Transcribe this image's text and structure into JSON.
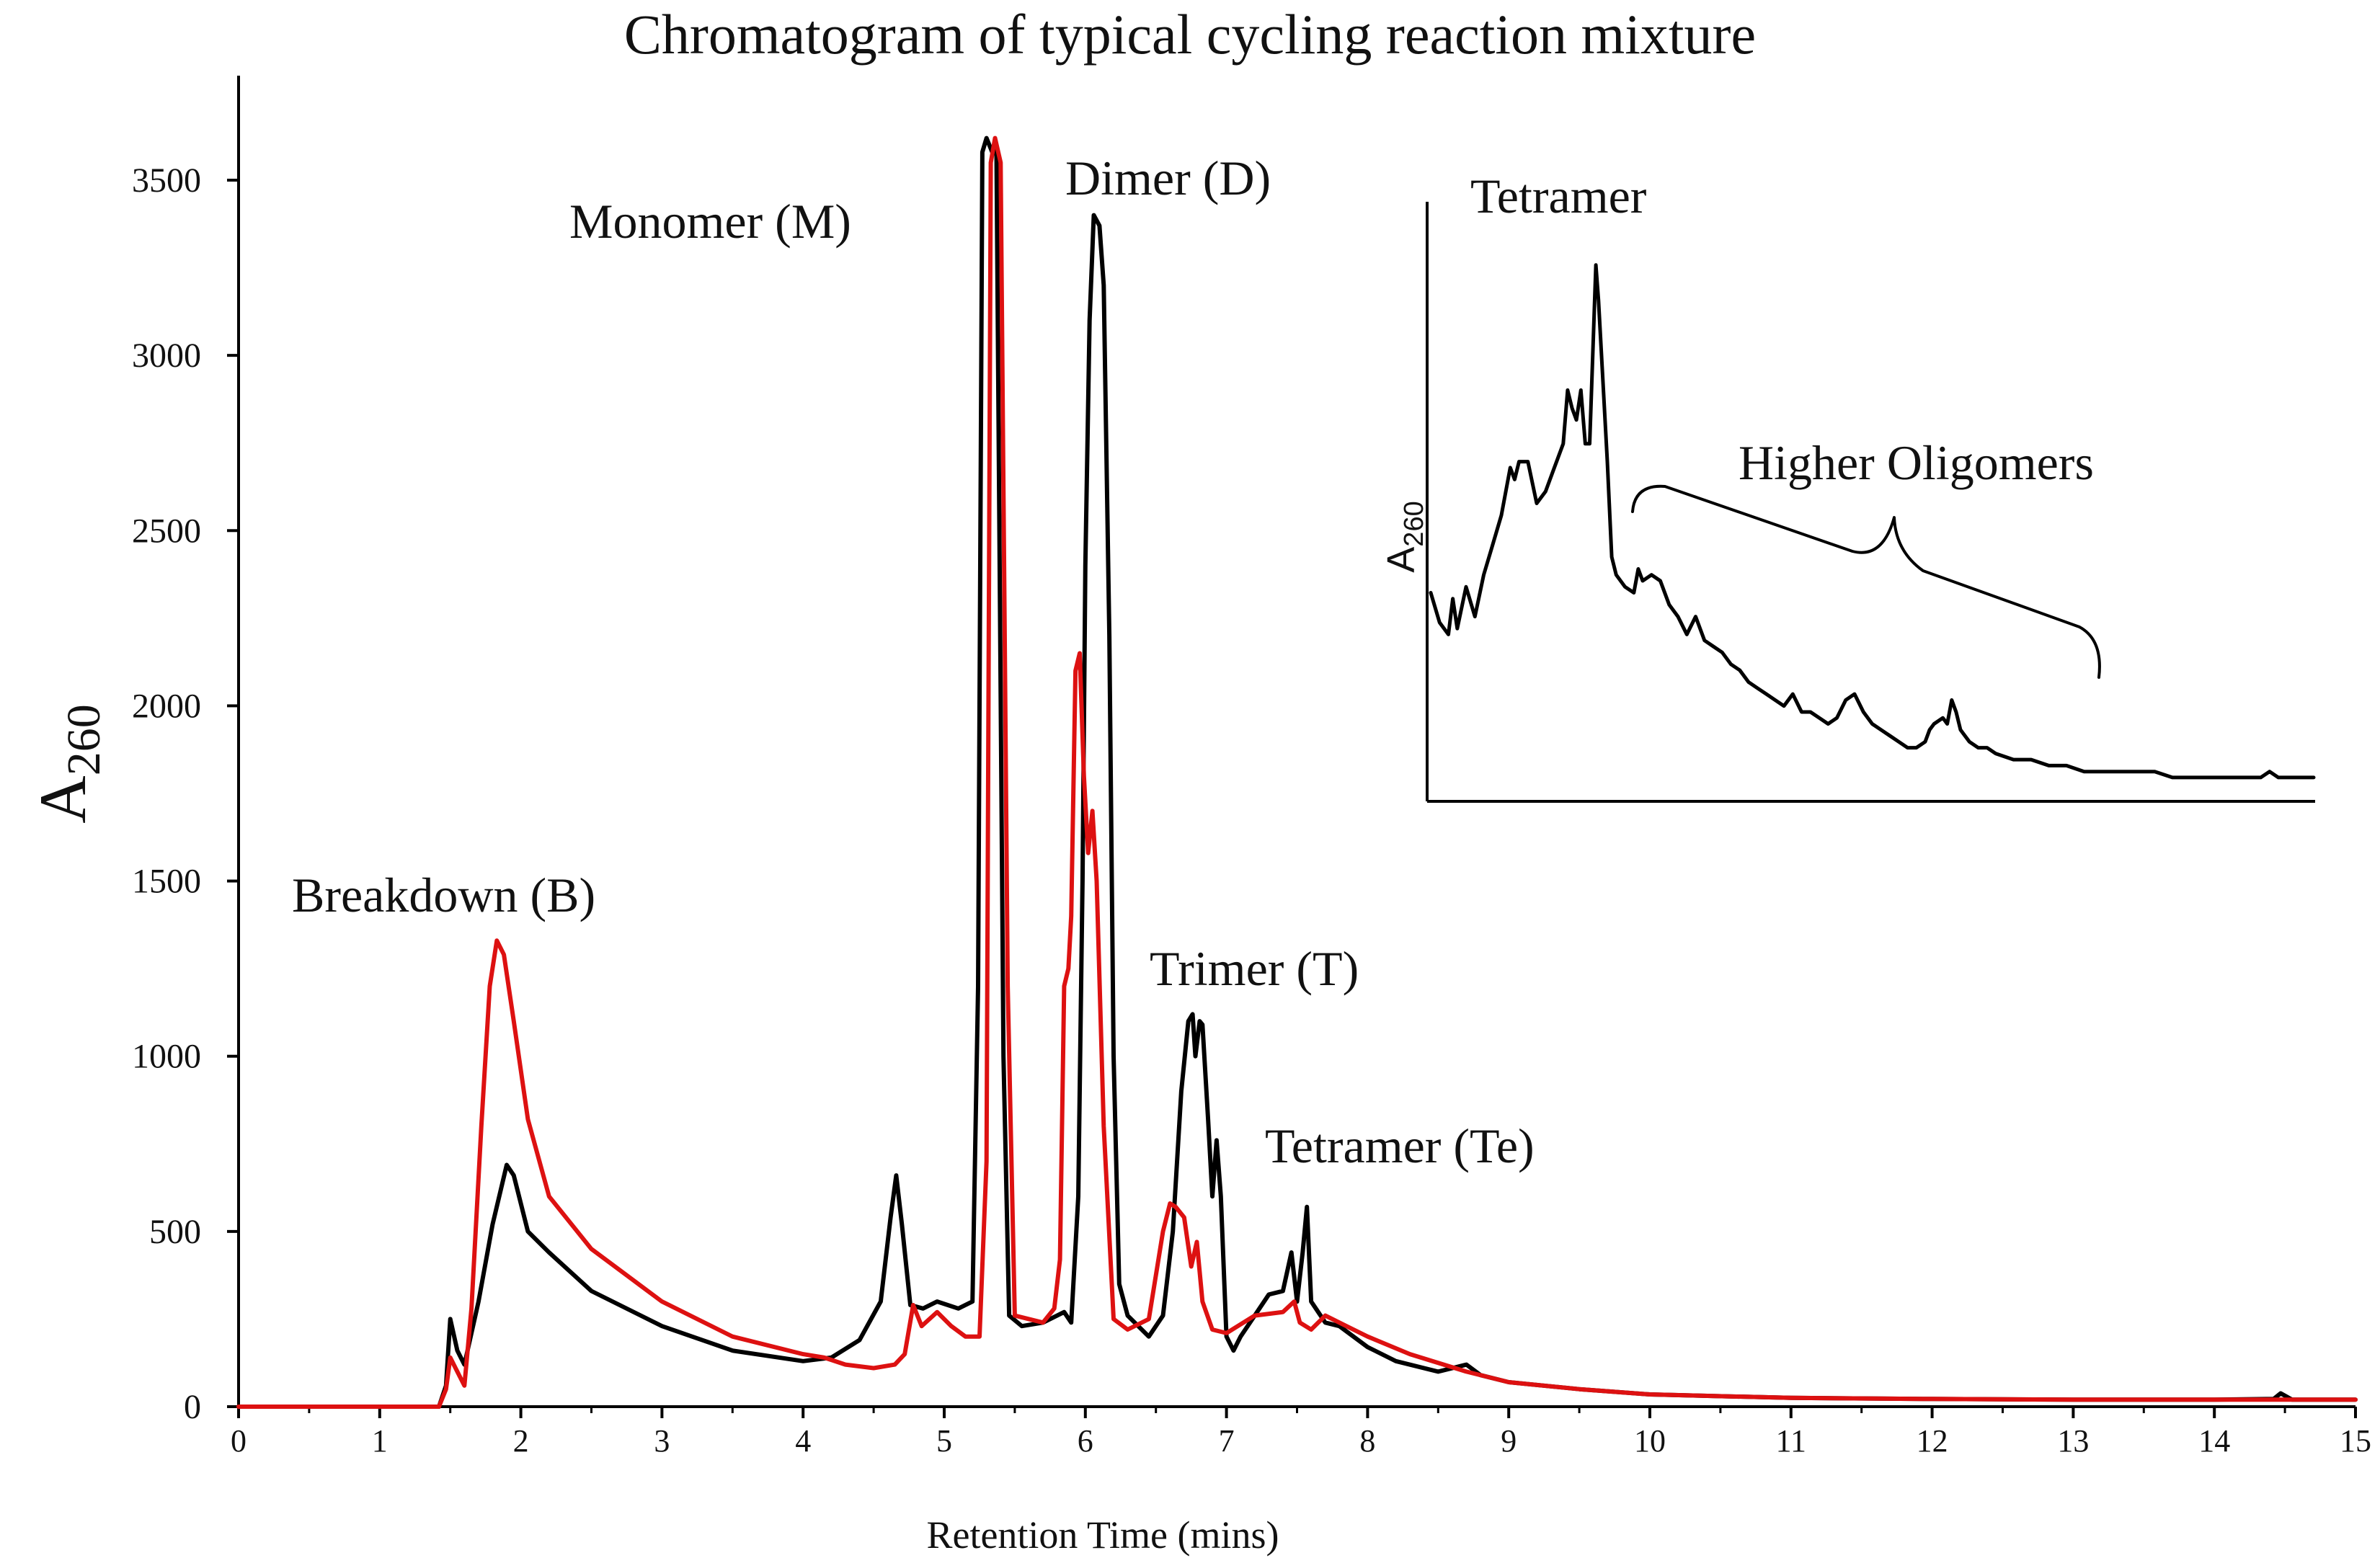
{
  "chart_data": {
    "type": "line",
    "title": "Chromatogram of typical cycling reaction mixture",
    "xlabel": "Retention Time (mins)",
    "ylabel_main": "A",
    "ylabel_sub": "260",
    "xlim": [
      0,
      15
    ],
    "ylim": [
      0,
      3800
    ],
    "x_ticks": [
      0,
      1,
      2,
      3,
      4,
      5,
      6,
      7,
      8,
      9,
      10,
      11,
      12,
      13,
      14,
      15
    ],
    "x_tick_labels": [
      "0",
      "1",
      "2",
      "3",
      "4",
      "5",
      "6",
      "7",
      "8",
      "9",
      "10",
      "11",
      "12",
      "13",
      "14",
      "15"
    ],
    "y_ticks": [
      0,
      500,
      1000,
      1500,
      2000,
      2500,
      3000,
      3500
    ],
    "y_tick_labels": [
      "0",
      "500",
      "1000",
      "1500",
      "2000",
      "2500",
      "3000",
      "3500"
    ],
    "grid": false,
    "series": [
      {
        "name": "black trace",
        "color": "#000000",
        "points": [
          [
            0,
            0
          ],
          [
            1.42,
            0
          ],
          [
            1.47,
            60
          ],
          [
            1.5,
            250
          ],
          [
            1.55,
            160
          ],
          [
            1.6,
            120
          ],
          [
            1.7,
            300
          ],
          [
            1.8,
            520
          ],
          [
            1.9,
            690
          ],
          [
            1.95,
            660
          ],
          [
            2.05,
            500
          ],
          [
            2.2,
            440
          ],
          [
            2.5,
            330
          ],
          [
            3.0,
            230
          ],
          [
            3.5,
            160
          ],
          [
            4.0,
            130
          ],
          [
            4.2,
            140
          ],
          [
            4.4,
            190
          ],
          [
            4.55,
            300
          ],
          [
            4.62,
            540
          ],
          [
            4.66,
            660
          ],
          [
            4.7,
            520
          ],
          [
            4.76,
            290
          ],
          [
            4.85,
            280
          ],
          [
            4.95,
            300
          ],
          [
            5.1,
            280
          ],
          [
            5.2,
            300
          ],
          [
            5.24,
            1200
          ],
          [
            5.27,
            3580
          ],
          [
            5.3,
            3620
          ],
          [
            5.34,
            3580
          ],
          [
            5.37,
            3600
          ],
          [
            5.42,
            1000
          ],
          [
            5.46,
            260
          ],
          [
            5.55,
            230
          ],
          [
            5.7,
            240
          ],
          [
            5.85,
            270
          ],
          [
            5.9,
            240
          ],
          [
            5.95,
            600
          ],
          [
            5.98,
            1500
          ],
          [
            6.0,
            2400
          ],
          [
            6.03,
            3100
          ],
          [
            6.06,
            3400
          ],
          [
            6.1,
            3370
          ],
          [
            6.13,
            3200
          ],
          [
            6.17,
            2200
          ],
          [
            6.2,
            1000
          ],
          [
            6.24,
            350
          ],
          [
            6.3,
            260
          ],
          [
            6.45,
            200
          ],
          [
            6.55,
            260
          ],
          [
            6.62,
            500
          ],
          [
            6.68,
            900
          ],
          [
            6.73,
            1100
          ],
          [
            6.76,
            1120
          ],
          [
            6.78,
            1000
          ],
          [
            6.81,
            1100
          ],
          [
            6.83,
            1090
          ],
          [
            6.87,
            820
          ],
          [
            6.9,
            600
          ],
          [
            6.93,
            760
          ],
          [
            6.96,
            600
          ],
          [
            7.0,
            200
          ],
          [
            7.05,
            160
          ],
          [
            7.1,
            200
          ],
          [
            7.2,
            260
          ],
          [
            7.3,
            320
          ],
          [
            7.4,
            330
          ],
          [
            7.46,
            440
          ],
          [
            7.5,
            300
          ],
          [
            7.54,
            440
          ],
          [
            7.57,
            570
          ],
          [
            7.6,
            300
          ],
          [
            7.7,
            240
          ],
          [
            7.8,
            230
          ],
          [
            8.0,
            170
          ],
          [
            8.2,
            130
          ],
          [
            8.5,
            100
          ],
          [
            8.7,
            120
          ],
          [
            8.8,
            90
          ],
          [
            9.0,
            70
          ],
          [
            9.5,
            50
          ],
          [
            10,
            35
          ],
          [
            11,
            25
          ],
          [
            12,
            22
          ],
          [
            13,
            20
          ],
          [
            14,
            20
          ],
          [
            14.42,
            22
          ],
          [
            14.47,
            38
          ],
          [
            14.55,
            20
          ],
          [
            15,
            20
          ]
        ]
      },
      {
        "name": "red trace",
        "color": "#dd1111",
        "points": [
          [
            0,
            0
          ],
          [
            1.42,
            0
          ],
          [
            1.47,
            50
          ],
          [
            1.5,
            140
          ],
          [
            1.55,
            100
          ],
          [
            1.6,
            60
          ],
          [
            1.65,
            280
          ],
          [
            1.72,
            800
          ],
          [
            1.78,
            1200
          ],
          [
            1.83,
            1330
          ],
          [
            1.88,
            1290
          ],
          [
            1.95,
            1100
          ],
          [
            2.05,
            820
          ],
          [
            2.2,
            600
          ],
          [
            2.5,
            450
          ],
          [
            3.0,
            300
          ],
          [
            3.5,
            200
          ],
          [
            4.0,
            150
          ],
          [
            4.15,
            140
          ],
          [
            4.3,
            120
          ],
          [
            4.5,
            110
          ],
          [
            4.65,
            120
          ],
          [
            4.72,
            150
          ],
          [
            4.78,
            290
          ],
          [
            4.84,
            230
          ],
          [
            4.95,
            270
          ],
          [
            5.05,
            230
          ],
          [
            5.15,
            200
          ],
          [
            5.25,
            200
          ],
          [
            5.3,
            700
          ],
          [
            5.33,
            3550
          ],
          [
            5.36,
            3620
          ],
          [
            5.4,
            3550
          ],
          [
            5.45,
            1200
          ],
          [
            5.5,
            260
          ],
          [
            5.6,
            250
          ],
          [
            5.7,
            240
          ],
          [
            5.78,
            280
          ],
          [
            5.82,
            420
          ],
          [
            5.85,
            1200
          ],
          [
            5.88,
            1250
          ],
          [
            5.9,
            1400
          ],
          [
            5.93,
            2100
          ],
          [
            5.96,
            2150
          ],
          [
            5.99,
            1800
          ],
          [
            6.02,
            1580
          ],
          [
            6.05,
            1700
          ],
          [
            6.08,
            1500
          ],
          [
            6.13,
            800
          ],
          [
            6.2,
            250
          ],
          [
            6.3,
            220
          ],
          [
            6.45,
            250
          ],
          [
            6.55,
            500
          ],
          [
            6.6,
            580
          ],
          [
            6.64,
            570
          ],
          [
            6.7,
            540
          ],
          [
            6.75,
            400
          ],
          [
            6.79,
            470
          ],
          [
            6.83,
            300
          ],
          [
            6.9,
            220
          ],
          [
            7.0,
            210
          ],
          [
            7.2,
            260
          ],
          [
            7.4,
            270
          ],
          [
            7.48,
            300
          ],
          [
            7.52,
            240
          ],
          [
            7.6,
            220
          ],
          [
            7.7,
            260
          ],
          [
            7.85,
            230
          ],
          [
            8.0,
            200
          ],
          [
            8.3,
            150
          ],
          [
            8.7,
            100
          ],
          [
            9.0,
            70
          ],
          [
            9.5,
            50
          ],
          [
            10,
            35
          ],
          [
            11,
            25
          ],
          [
            12,
            22
          ],
          [
            13,
            20
          ],
          [
            14,
            20
          ],
          [
            15,
            20
          ]
        ]
      }
    ],
    "annotations": [
      "Breakdown (B)",
      "Monomer (M)",
      "Dimer (D)",
      "Trimer (T)",
      "Tetramer (Te)"
    ],
    "inset": {
      "type": "line",
      "ylabel_main": "A",
      "ylabel_sub": "260",
      "label_tetramer": "Tetramer",
      "label_higher": "Higher Oligomers",
      "xlim": [
        0,
        100
      ],
      "ylim": [
        0,
        100
      ],
      "color": "#000000",
      "points": [
        [
          0,
          35
        ],
        [
          1,
          30
        ],
        [
          2,
          28
        ],
        [
          2.5,
          34
        ],
        [
          3,
          29
        ],
        [
          4,
          36
        ],
        [
          5,
          31
        ],
        [
          6,
          38
        ],
        [
          7,
          43
        ],
        [
          8,
          48
        ],
        [
          9,
          56
        ],
        [
          9.5,
          54
        ],
        [
          10,
          57
        ],
        [
          11,
          57
        ],
        [
          12,
          50
        ],
        [
          13,
          52
        ],
        [
          14,
          56
        ],
        [
          15,
          60
        ],
        [
          15.5,
          69
        ],
        [
          16,
          66
        ],
        [
          16.5,
          64
        ],
        [
          17,
          69
        ],
        [
          17.5,
          60
        ],
        [
          18,
          60
        ],
        [
          18.7,
          90
        ],
        [
          19,
          84
        ],
        [
          20,
          57
        ],
        [
          20.5,
          41
        ],
        [
          21,
          38
        ],
        [
          22,
          36
        ],
        [
          23,
          35
        ],
        [
          23.5,
          39
        ],
        [
          24,
          37
        ],
        [
          25,
          38
        ],
        [
          26,
          37
        ],
        [
          27,
          33
        ],
        [
          28,
          31
        ],
        [
          29,
          28
        ],
        [
          30,
          31
        ],
        [
          31,
          27
        ],
        [
          32,
          26
        ],
        [
          33,
          25
        ],
        [
          34,
          23
        ],
        [
          35,
          22
        ],
        [
          36,
          20
        ],
        [
          37,
          19
        ],
        [
          38,
          18
        ],
        [
          39,
          17
        ],
        [
          40,
          16
        ],
        [
          41,
          18
        ],
        [
          42,
          15
        ],
        [
          43,
          15
        ],
        [
          44,
          14
        ],
        [
          45,
          13
        ],
        [
          46,
          14
        ],
        [
          47,
          17
        ],
        [
          48,
          18
        ],
        [
          49,
          15
        ],
        [
          50,
          13
        ],
        [
          51,
          12
        ],
        [
          52,
          11
        ],
        [
          53,
          10
        ],
        [
          54,
          9
        ],
        [
          55,
          9
        ],
        [
          56,
          10
        ],
        [
          56.5,
          12
        ],
        [
          57,
          13
        ],
        [
          58,
          14
        ],
        [
          58.5,
          13
        ],
        [
          59,
          17
        ],
        [
          59.5,
          15
        ],
        [
          60,
          12
        ],
        [
          61,
          10
        ],
        [
          62,
          9
        ],
        [
          63,
          9
        ],
        [
          64,
          8
        ],
        [
          66,
          7
        ],
        [
          68,
          7
        ],
        [
          70,
          6
        ],
        [
          72,
          6
        ],
        [
          74,
          5
        ],
        [
          76,
          5
        ],
        [
          78,
          5
        ],
        [
          80,
          5
        ],
        [
          82,
          5
        ],
        [
          84,
          4
        ],
        [
          86,
          4
        ],
        [
          88,
          4
        ],
        [
          90,
          4
        ],
        [
          92,
          4
        ],
        [
          94,
          4
        ],
        [
          95,
          5
        ],
        [
          96,
          4
        ],
        [
          98,
          4
        ],
        [
          100,
          4
        ]
      ]
    }
  }
}
